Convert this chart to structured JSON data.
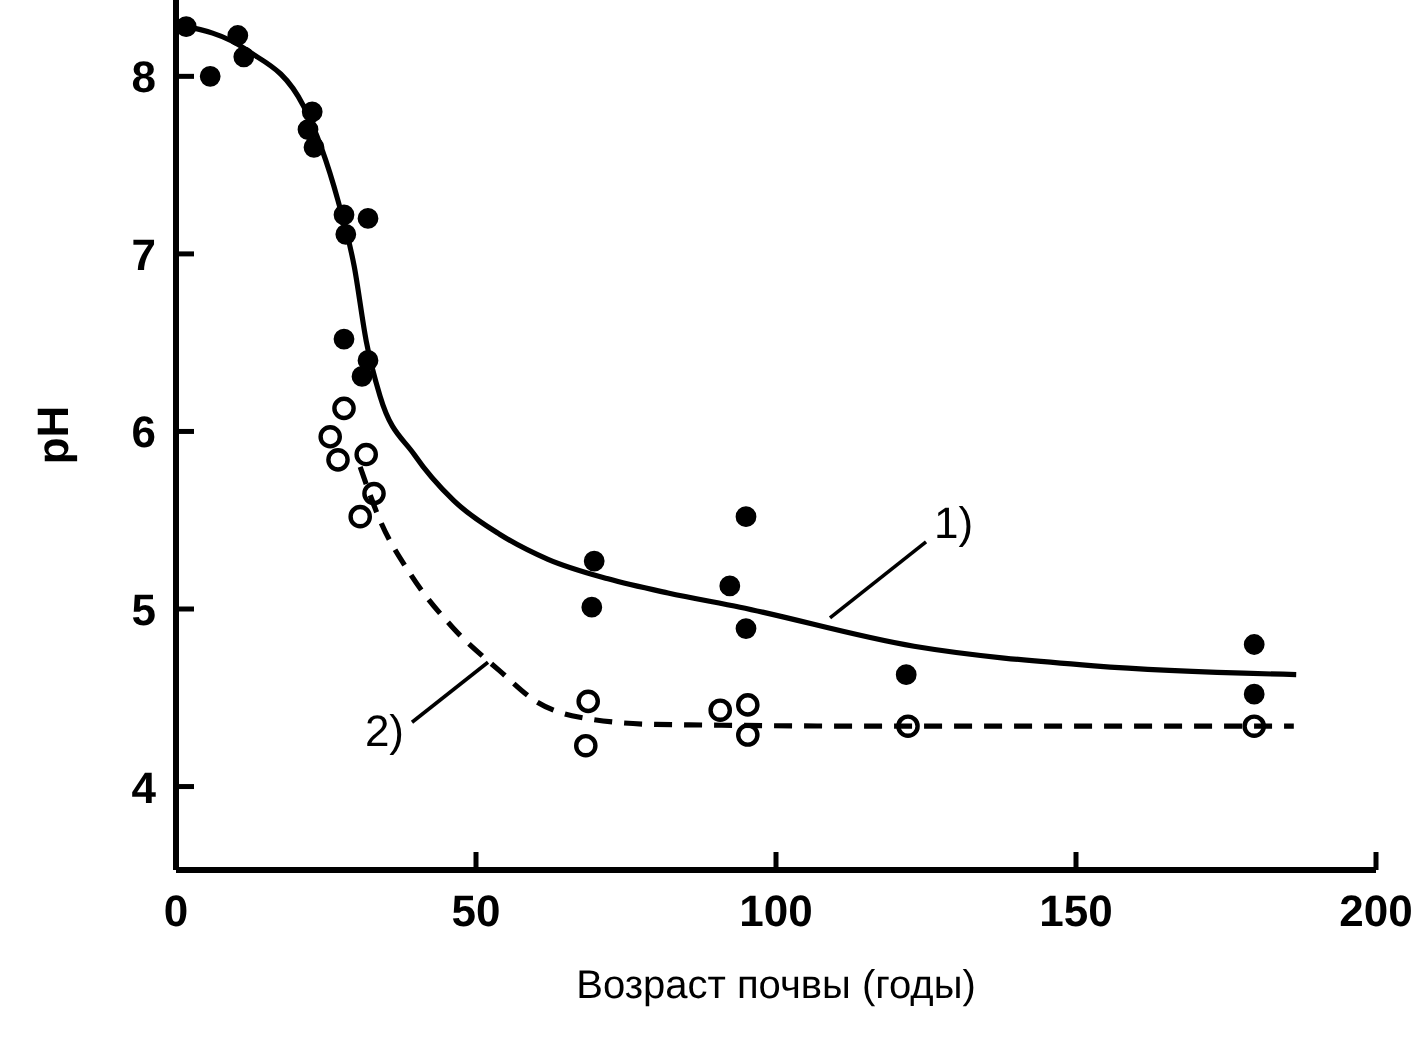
{
  "chart_data": {
    "type": "scatter",
    "xlabel": "Возраст почвы (годы)",
    "ylabel": "pH",
    "xlim": [
      0,
      200
    ],
    "ylim": [
      3.53,
      8.43
    ],
    "xticks": [
      0,
      50,
      100,
      150,
      200
    ],
    "yticks": [
      4,
      5,
      6,
      7,
      8
    ],
    "grid": false,
    "marker": "circle",
    "series": [
      {
        "color": "#000000",
        "x": [
          1.7,
          5.7,
          10.3,
          11.3,
          22.7,
          22,
          23,
          28,
          28.3,
          32,
          28,
          32,
          31,
          69.7,
          69.3,
          95,
          92.3,
          95,
          121.7,
          179.7,
          179.7
        ],
        "values": [
          8.28,
          8.0,
          8.23,
          8.11,
          7.8,
          7.7,
          7.6,
          7.22,
          7.11,
          7.2,
          6.52,
          6.4,
          6.31,
          5.27,
          5.01,
          5.52,
          5.13,
          4.89,
          4.63,
          4.8,
          4.52
        ]
      },
      {
        "color": "#ffffff",
        "x": [
          28,
          25.7,
          27,
          31.7,
          33,
          30.7,
          68.7,
          68.3,
          90.7,
          95.3,
          95.3,
          122,
          179.7
        ],
        "values": [
          6.13,
          5.97,
          5.84,
          5.87,
          5.65,
          5.52,
          4.48,
          4.23,
          4.43,
          4.46,
          4.29,
          4.34,
          4.34
        ]
      },
      {
        "type": "line",
        "color": "#000000",
        "line_style": "solid",
        "marker": "none",
        "x": [
          0.5,
          11.7,
          21.3,
          27,
          29.7,
          31.7,
          34,
          39.7,
          46.3,
          54,
          62,
          72,
          82,
          94,
          123,
          153,
          186.7
        ],
        "values": [
          8.29,
          8.15,
          7.83,
          7.3,
          6.93,
          6.51,
          6.2,
          5.87,
          5.61,
          5.42,
          5.28,
          5.17,
          5.09,
          5.01,
          4.79,
          4.68,
          4.63
        ]
      },
      {
        "type": "line",
        "color": "#000000",
        "line_style": "dashed",
        "marker": "none",
        "x": [
          30.7,
          34,
          39,
          46,
          54,
          60,
          67.3,
          80,
          120,
          186.3
        ],
        "values": [
          5.8,
          5.5,
          5.2,
          4.9,
          4.65,
          4.48,
          4.39,
          4.35,
          4.34,
          4.34
        ]
      }
    ],
    "annotations": [
      {
        "text": "1)",
        "x": 109,
        "y": 4.95
      },
      {
        "text": "2)",
        "x": 52,
        "y": 4.7
      }
    ]
  }
}
